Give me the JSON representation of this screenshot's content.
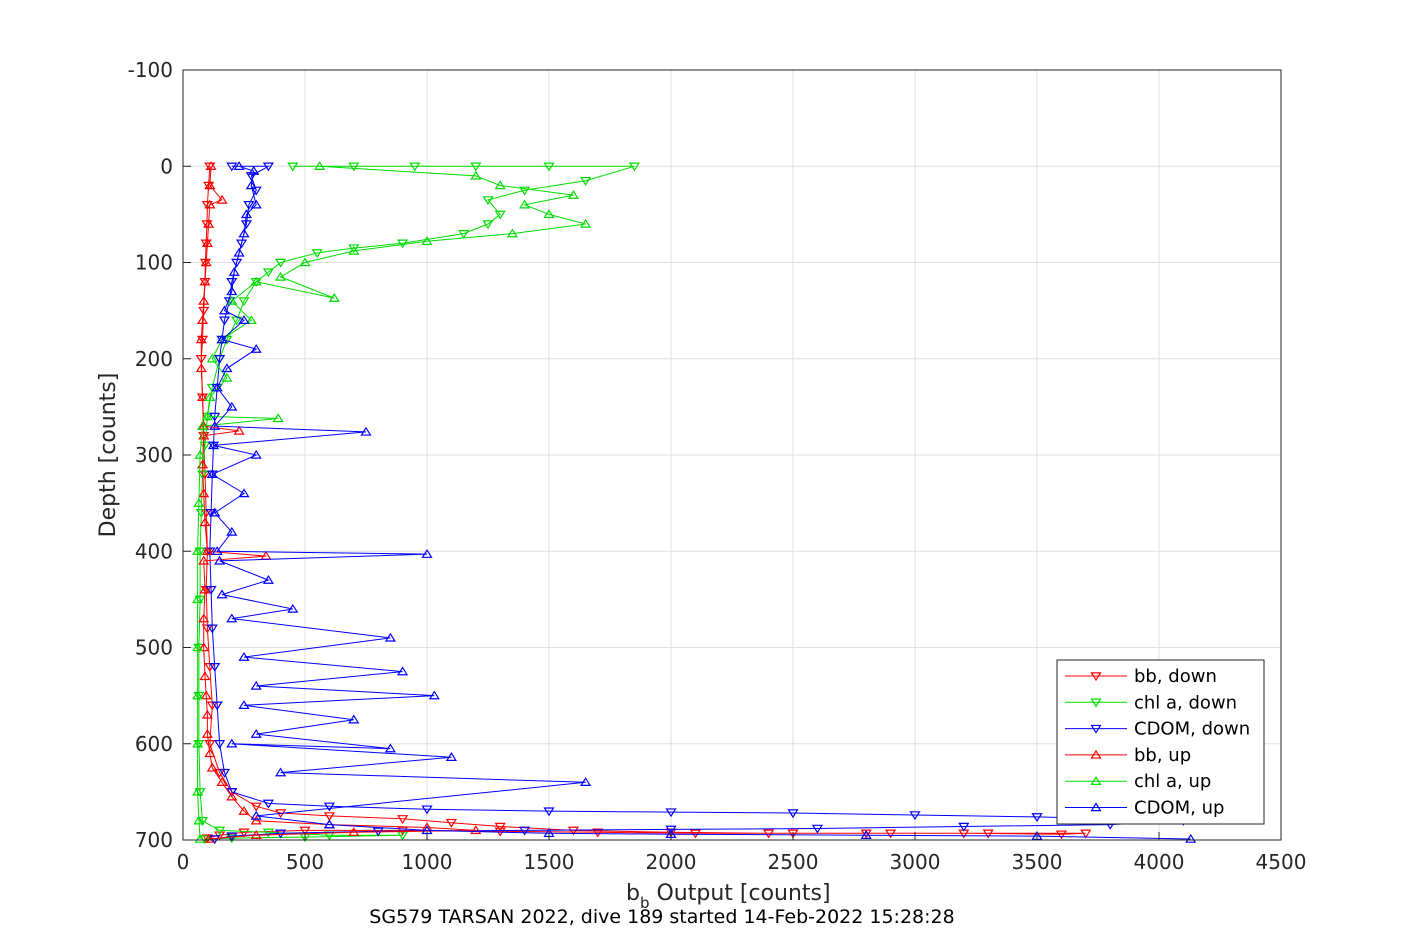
{
  "chart_data": {
    "type": "line",
    "xlabel_main": "b",
    "xlabel_sub": "b",
    "xlabel_rest": " Output [counts]",
    "ylabel": "Depth [counts]",
    "caption": "SG579 TARSAN 2022, dive 189 started 14-Feb-2022 15:28:28",
    "xlim": [
      0,
      4500
    ],
    "ylim": [
      -100,
      700
    ],
    "y_reversed": true,
    "grid": true,
    "x_ticks": [
      0,
      500,
      1000,
      1500,
      2000,
      2500,
      3000,
      3500,
      4000,
      4500
    ],
    "y_ticks": [
      -100,
      0,
      100,
      200,
      300,
      400,
      500,
      600,
      700
    ],
    "x_tick_labels": [
      "0",
      "500",
      "1000",
      "1500",
      "2000",
      "2500",
      "3000",
      "3500",
      "4000",
      "4500"
    ],
    "y_tick_labels": [
      "-100",
      "0",
      "100",
      "200",
      "300",
      "400",
      "500",
      "600",
      "700"
    ],
    "legend_position": "bottom-right",
    "series": [
      {
        "name": "bb, down",
        "color": "#ff0000",
        "marker": "triangle-down",
        "points": [
          [
            110,
            0
          ],
          [
            105,
            20
          ],
          [
            100,
            40
          ],
          [
            98,
            60
          ],
          [
            95,
            80
          ],
          [
            92,
            100
          ],
          [
            90,
            120
          ],
          [
            85,
            150
          ],
          [
            80,
            180
          ],
          [
            75,
            200
          ],
          [
            80,
            240
          ],
          [
            85,
            280
          ],
          [
            90,
            320
          ],
          [
            95,
            360
          ],
          [
            100,
            400
          ],
          [
            95,
            440
          ],
          [
            100,
            480
          ],
          [
            110,
            520
          ],
          [
            120,
            560
          ],
          [
            110,
            600
          ],
          [
            150,
            630
          ],
          [
            200,
            650
          ],
          [
            300,
            665
          ],
          [
            400,
            672
          ],
          [
            600,
            675
          ],
          [
            900,
            678
          ],
          [
            1100,
            682
          ],
          [
            1300,
            686
          ],
          [
            1600,
            690
          ],
          [
            2000,
            692
          ],
          [
            2400,
            693
          ],
          [
            2800,
            693
          ],
          [
            3200,
            693
          ],
          [
            3600,
            694
          ],
          [
            3700,
            693
          ],
          [
            3300,
            693
          ],
          [
            2900,
            693
          ],
          [
            2500,
            693
          ],
          [
            2100,
            693
          ],
          [
            1700,
            692
          ],
          [
            1300,
            691
          ],
          [
            900,
            690
          ],
          [
            500,
            690
          ],
          [
            250,
            692
          ],
          [
            150,
            695
          ],
          [
            100,
            698
          ]
        ]
      },
      {
        "name": "chl a, down",
        "color": "#00dd00",
        "marker": "triangle-down",
        "points": [
          [
            450,
            0
          ],
          [
            700,
            0
          ],
          [
            950,
            0
          ],
          [
            1200,
            0
          ],
          [
            1500,
            0
          ],
          [
            1850,
            0
          ],
          [
            1650,
            15
          ],
          [
            1400,
            25
          ],
          [
            1250,
            35
          ],
          [
            1300,
            50
          ],
          [
            1250,
            60
          ],
          [
            1150,
            70
          ],
          [
            900,
            80
          ],
          [
            700,
            85
          ],
          [
            550,
            90
          ],
          [
            400,
            100
          ],
          [
            350,
            110
          ],
          [
            300,
            120
          ],
          [
            250,
            140
          ],
          [
            220,
            160
          ],
          [
            180,
            180
          ],
          [
            150,
            200
          ],
          [
            120,
            230
          ],
          [
            100,
            260
          ],
          [
            90,
            290
          ],
          [
            80,
            320
          ],
          [
            75,
            360
          ],
          [
            70,
            400
          ],
          [
            70,
            450
          ],
          [
            65,
            500
          ],
          [
            65,
            550
          ],
          [
            65,
            600
          ],
          [
            70,
            650
          ],
          [
            80,
            680
          ],
          [
            150,
            690
          ],
          [
            350,
            692
          ],
          [
            600,
            695
          ],
          [
            900,
            695
          ],
          [
            500,
            697
          ],
          [
            200,
            698
          ],
          [
            90,
            699
          ]
        ]
      },
      {
        "name": "CDOM, down",
        "color": "#0000ff",
        "marker": "triangle-down",
        "points": [
          [
            200,
            0
          ],
          [
            350,
            0
          ],
          [
            280,
            10
          ],
          [
            300,
            25
          ],
          [
            270,
            40
          ],
          [
            260,
            60
          ],
          [
            240,
            80
          ],
          [
            220,
            100
          ],
          [
            200,
            120
          ],
          [
            190,
            140
          ],
          [
            170,
            160
          ],
          [
            160,
            180
          ],
          [
            150,
            200
          ],
          [
            140,
            230
          ],
          [
            130,
            260
          ],
          [
            125,
            290
          ],
          [
            120,
            320
          ],
          [
            115,
            360
          ],
          [
            110,
            400
          ],
          [
            115,
            440
          ],
          [
            120,
            480
          ],
          [
            130,
            520
          ],
          [
            140,
            560
          ],
          [
            150,
            600
          ],
          [
            170,
            630
          ],
          [
            200,
            650
          ],
          [
            350,
            662
          ],
          [
            600,
            665
          ],
          [
            1000,
            668
          ],
          [
            1500,
            670
          ],
          [
            2000,
            671
          ],
          [
            2500,
            672
          ],
          [
            3000,
            674
          ],
          [
            3500,
            676
          ],
          [
            4100,
            680
          ],
          [
            3800,
            684
          ],
          [
            3200,
            686
          ],
          [
            2600,
            688
          ],
          [
            2000,
            689
          ],
          [
            1400,
            690
          ],
          [
            800,
            691
          ],
          [
            400,
            693
          ],
          [
            200,
            696
          ],
          [
            130,
            699
          ]
        ]
      },
      {
        "name": "bb, up",
        "color": "#ff0000",
        "marker": "triangle-up",
        "points": [
          [
            105,
            699
          ],
          [
            300,
            695
          ],
          [
            700,
            692
          ],
          [
            1200,
            690
          ],
          [
            1000,
            687
          ],
          [
            600,
            684
          ],
          [
            300,
            680
          ],
          [
            250,
            670
          ],
          [
            200,
            655
          ],
          [
            160,
            640
          ],
          [
            120,
            625
          ],
          [
            110,
            610
          ],
          [
            100,
            590
          ],
          [
            100,
            570
          ],
          [
            95,
            550
          ],
          [
            90,
            530
          ],
          [
            85,
            500
          ],
          [
            85,
            470
          ],
          [
            90,
            440
          ],
          [
            85,
            410
          ],
          [
            340,
            405
          ],
          [
            100,
            400
          ],
          [
            90,
            370
          ],
          [
            85,
            340
          ],
          [
            80,
            310
          ],
          [
            85,
            280
          ],
          [
            230,
            275
          ],
          [
            85,
            270
          ],
          [
            80,
            240
          ],
          [
            75,
            210
          ],
          [
            75,
            180
          ],
          [
            80,
            160
          ],
          [
            85,
            140
          ],
          [
            90,
            120
          ],
          [
            95,
            100
          ],
          [
            100,
            80
          ],
          [
            105,
            60
          ],
          [
            110,
            40
          ],
          [
            160,
            35
          ],
          [
            110,
            20
          ],
          [
            115,
            0
          ]
        ]
      },
      {
        "name": "chl a, up",
        "color": "#00dd00",
        "marker": "triangle-up",
        "points": [
          [
            70,
            699
          ],
          [
            65,
            680
          ],
          [
            60,
            650
          ],
          [
            60,
            600
          ],
          [
            60,
            550
          ],
          [
            60,
            500
          ],
          [
            60,
            450
          ],
          [
            60,
            400
          ],
          [
            65,
            350
          ],
          [
            70,
            300
          ],
          [
            80,
            270
          ],
          [
            390,
            262
          ],
          [
            100,
            260
          ],
          [
            110,
            240
          ],
          [
            180,
            220
          ],
          [
            120,
            200
          ],
          [
            160,
            180
          ],
          [
            280,
            160
          ],
          [
            200,
            140
          ],
          [
            300,
            120
          ],
          [
            620,
            137
          ],
          [
            400,
            115
          ],
          [
            500,
            100
          ],
          [
            700,
            88
          ],
          [
            1000,
            78
          ],
          [
            1350,
            70
          ],
          [
            1650,
            60
          ],
          [
            1500,
            50
          ],
          [
            1400,
            40
          ],
          [
            1600,
            30
          ],
          [
            1300,
            20
          ],
          [
            1200,
            10
          ],
          [
            560,
            0
          ]
        ]
      },
      {
        "name": "CDOM, up",
        "color": "#0000ff",
        "marker": "triangle-up",
        "points": [
          [
            4130,
            699
          ],
          [
            3500,
            696
          ],
          [
            2800,
            695
          ],
          [
            2000,
            694
          ],
          [
            1500,
            693
          ],
          [
            1000,
            690
          ],
          [
            600,
            684
          ],
          [
            300,
            675
          ],
          [
            1650,
            640
          ],
          [
            400,
            630
          ],
          [
            1100,
            614
          ],
          [
            200,
            600
          ],
          [
            850,
            605
          ],
          [
            300,
            590
          ],
          [
            700,
            575
          ],
          [
            250,
            560
          ],
          [
            1030,
            550
          ],
          [
            300,
            540
          ],
          [
            900,
            525
          ],
          [
            250,
            510
          ],
          [
            850,
            490
          ],
          [
            200,
            470
          ],
          [
            450,
            460
          ],
          [
            160,
            445
          ],
          [
            350,
            430
          ],
          [
            150,
            410
          ],
          [
            1000,
            403
          ],
          [
            140,
            400
          ],
          [
            200,
            380
          ],
          [
            130,
            360
          ],
          [
            250,
            340
          ],
          [
            120,
            320
          ],
          [
            300,
            300
          ],
          [
            125,
            290
          ],
          [
            750,
            276
          ],
          [
            130,
            270
          ],
          [
            200,
            250
          ],
          [
            140,
            230
          ],
          [
            180,
            210
          ],
          [
            300,
            190
          ],
          [
            160,
            180
          ],
          [
            250,
            160
          ],
          [
            170,
            150
          ],
          [
            200,
            130
          ],
          [
            210,
            110
          ],
          [
            230,
            90
          ],
          [
            250,
            70
          ],
          [
            260,
            50
          ],
          [
            300,
            40
          ],
          [
            280,
            20
          ],
          [
            290,
            5
          ],
          [
            230,
            0
          ]
        ]
      }
    ]
  }
}
